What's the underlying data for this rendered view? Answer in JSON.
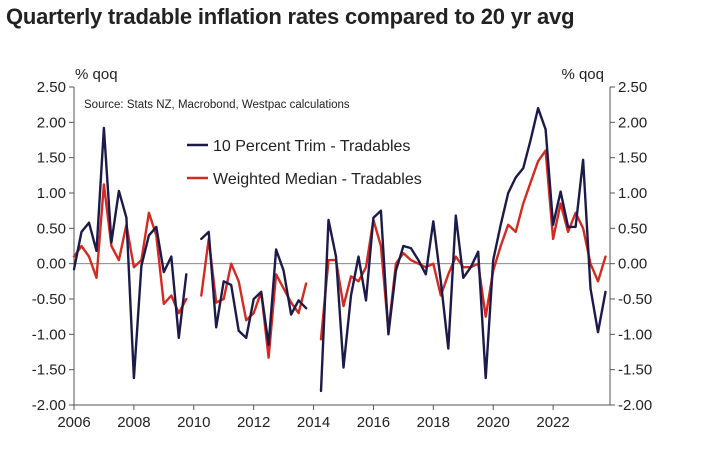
{
  "chart_data": {
    "type": "line",
    "title": "Quarterly tradable inflation rates compared to 20 yr avg",
    "ylabel_left": "% qoq",
    "ylabel_right": "% qoq",
    "source": "Source: Stats NZ, Macrobond, Westpac calculations",
    "ylim": [
      -2.0,
      2.5
    ],
    "yticks": [
      "2.50",
      "2.00",
      "1.50",
      "1.00",
      "0.50",
      "0.00",
      "-0.50",
      "-1.00",
      "-1.50",
      "-2.00"
    ],
    "xlim": [
      2006,
      2023.9
    ],
    "xticks": [
      "2006",
      "2008",
      "2010",
      "2012",
      "2014",
      "2016",
      "2018",
      "2020",
      "2022"
    ],
    "grid": false,
    "legend_position": "top-left",
    "series": [
      {
        "name": "10 Percent Trim - Tradables",
        "color": "#1c1a4a",
        "points": [
          [
            2006.0,
            -0.08
          ],
          [
            2006.25,
            0.45
          ],
          [
            2006.5,
            0.58
          ],
          [
            2006.75,
            0.18
          ],
          [
            2007.0,
            1.92
          ],
          [
            2007.25,
            0.3
          ],
          [
            2007.5,
            1.03
          ],
          [
            2007.75,
            0.65
          ],
          [
            2008.0,
            -1.62
          ],
          [
            2008.25,
            -0.03
          ],
          [
            2008.5,
            0.4
          ],
          [
            2008.75,
            0.52
          ],
          [
            2009.0,
            -0.12
          ],
          [
            2009.25,
            0.1
          ],
          [
            2009.5,
            -1.05
          ],
          [
            2009.75,
            -0.15
          ],
          null,
          [
            2010.25,
            0.35
          ],
          [
            2010.5,
            0.45
          ],
          [
            2010.75,
            -0.9
          ],
          [
            2011.0,
            -0.25
          ],
          [
            2011.25,
            -0.3
          ],
          [
            2011.5,
            -0.95
          ],
          [
            2011.75,
            -1.05
          ],
          [
            2012.0,
            -0.5
          ],
          [
            2012.25,
            -0.4
          ],
          [
            2012.5,
            -1.15
          ],
          [
            2012.75,
            0.2
          ],
          [
            2013.0,
            -0.1
          ],
          [
            2013.25,
            -0.72
          ],
          [
            2013.5,
            -0.52
          ],
          [
            2013.75,
            -0.63
          ],
          null,
          [
            2014.25,
            -1.8
          ],
          [
            2014.5,
            0.62
          ],
          [
            2014.75,
            0.1
          ],
          [
            2015.0,
            -1.47
          ],
          [
            2015.25,
            -0.45
          ],
          [
            2015.5,
            0.1
          ],
          [
            2015.75,
            -0.52
          ],
          [
            2016.0,
            0.65
          ],
          [
            2016.25,
            0.75
          ],
          [
            2016.5,
            -1.0
          ],
          [
            2016.75,
            -0.1
          ],
          [
            2017.0,
            0.25
          ],
          [
            2017.25,
            0.22
          ],
          [
            2017.5,
            0.05
          ],
          [
            2017.75,
            -0.15
          ],
          [
            2018.0,
            0.6
          ],
          [
            2018.25,
            -0.25
          ],
          [
            2018.5,
            -1.2
          ],
          [
            2018.75,
            0.68
          ],
          [
            2019.0,
            -0.2
          ],
          [
            2019.25,
            -0.05
          ],
          [
            2019.5,
            0.17
          ],
          [
            2019.75,
            -1.62
          ],
          [
            2020.0,
            0.05
          ],
          [
            2020.25,
            0.55
          ],
          [
            2020.5,
            1.0
          ],
          [
            2020.75,
            1.22
          ],
          [
            2021.0,
            1.35
          ],
          [
            2021.25,
            1.75
          ],
          [
            2021.5,
            2.2
          ],
          [
            2021.75,
            1.9
          ],
          [
            2022.0,
            0.55
          ],
          [
            2022.25,
            1.02
          ],
          [
            2022.5,
            0.52
          ],
          [
            2022.75,
            0.52
          ],
          [
            2023.0,
            1.47
          ],
          [
            2023.25,
            -0.35
          ],
          [
            2023.5,
            -0.97
          ],
          [
            2023.75,
            -0.4
          ]
        ]
      },
      {
        "name": "Weighted Median - Tradables",
        "color": "#d42a20",
        "points": [
          [
            2006.0,
            0.1
          ],
          [
            2006.25,
            0.25
          ],
          [
            2006.5,
            0.1
          ],
          [
            2006.75,
            -0.2
          ],
          [
            2007.0,
            1.12
          ],
          [
            2007.25,
            0.25
          ],
          [
            2007.5,
            0.05
          ],
          [
            2007.75,
            0.55
          ],
          [
            2008.0,
            -0.05
          ],
          [
            2008.25,
            0.05
          ],
          [
            2008.5,
            0.72
          ],
          [
            2008.75,
            0.4
          ],
          [
            2009.0,
            -0.57
          ],
          [
            2009.25,
            -0.45
          ],
          [
            2009.5,
            -0.7
          ],
          [
            2009.75,
            -0.5
          ],
          null,
          [
            2010.25,
            -0.45
          ],
          [
            2010.5,
            0.35
          ],
          [
            2010.75,
            -0.55
          ],
          [
            2011.0,
            -0.5
          ],
          [
            2011.25,
            0.0
          ],
          [
            2011.5,
            -0.25
          ],
          [
            2011.75,
            -0.8
          ],
          [
            2012.0,
            -0.7
          ],
          [
            2012.25,
            -0.4
          ],
          [
            2012.5,
            -1.33
          ],
          [
            2012.75,
            -0.15
          ],
          [
            2013.0,
            -0.35
          ],
          [
            2013.25,
            -0.55
          ],
          [
            2013.5,
            -0.7
          ],
          [
            2013.75,
            -0.28
          ],
          null,
          [
            2014.25,
            -1.07
          ],
          [
            2014.5,
            0.05
          ],
          [
            2014.75,
            0.05
          ],
          [
            2015.0,
            -0.6
          ],
          [
            2015.25,
            -0.18
          ],
          [
            2015.5,
            -0.25
          ],
          [
            2015.75,
            -0.05
          ],
          [
            2016.0,
            0.62
          ],
          [
            2016.25,
            0.25
          ],
          [
            2016.5,
            -0.95
          ],
          [
            2016.75,
            0.0
          ],
          [
            2017.0,
            0.15
          ],
          [
            2017.25,
            0.05
          ],
          [
            2017.5,
            0.0
          ],
          [
            2017.75,
            -0.05
          ],
          [
            2018.0,
            0.0
          ],
          [
            2018.25,
            -0.45
          ],
          [
            2018.5,
            -0.15
          ],
          [
            2018.75,
            0.1
          ],
          [
            2019.0,
            -0.05
          ],
          [
            2019.25,
            -0.05
          ],
          [
            2019.5,
            0.0
          ],
          [
            2019.75,
            -0.75
          ],
          [
            2020.0,
            -0.1
          ],
          [
            2020.25,
            0.25
          ],
          [
            2020.5,
            0.55
          ],
          [
            2020.75,
            0.45
          ],
          [
            2021.0,
            0.85
          ],
          [
            2021.25,
            1.15
          ],
          [
            2021.5,
            1.45
          ],
          [
            2021.75,
            1.6
          ],
          [
            2022.0,
            0.35
          ],
          [
            2022.25,
            0.85
          ],
          [
            2022.5,
            0.45
          ],
          [
            2022.75,
            0.72
          ],
          [
            2023.0,
            0.5
          ],
          [
            2023.25,
            0.0
          ],
          [
            2023.5,
            -0.25
          ],
          [
            2023.75,
            0.1
          ]
        ]
      }
    ]
  }
}
